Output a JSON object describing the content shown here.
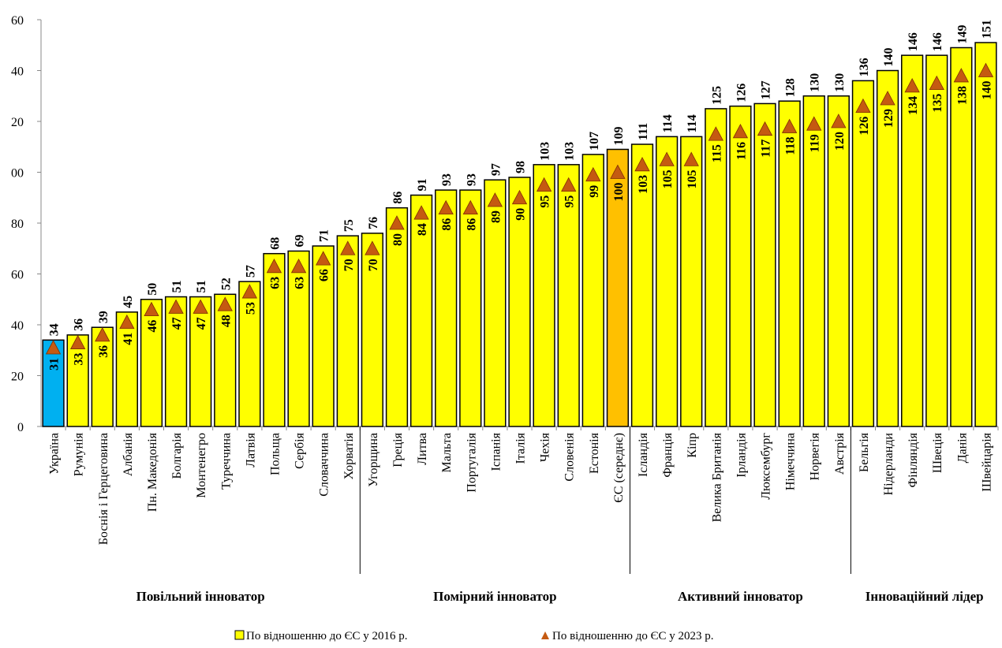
{
  "chart_data": {
    "type": "bar",
    "groups": [
      {
        "name": "Повільний інноватор",
        "categories": [
          "Україна",
          "Румунія",
          "Боснія і Герцеговина",
          "Албанія",
          "Пн. Македонія",
          "Болгарія",
          "Монтенегро",
          "Туреччина",
          "Латвія",
          "Польща",
          "Сербія",
          "Словаччина",
          "Хорватія"
        ]
      },
      {
        "name": "Помірний інноватор",
        "categories": [
          "Угорщина",
          "Греція",
          "Литва",
          "Мальта",
          "Португалія",
          "Іспанія",
          "Італія",
          "Чехія",
          "Словенія",
          "Естонія",
          "ЄС (середнє)"
        ]
      },
      {
        "name": "Активний інноватор",
        "categories": [
          "Ісландія",
          "Франція",
          "Кіпр",
          "Велика Британія",
          "Ірландія",
          "Люксембург",
          "Німеччина",
          "Норвегія",
          "Австрія"
        ]
      },
      {
        "name": "Інноваційний лідер",
        "categories": [
          "Бельгія",
          "Нідерланди",
          "Фінляндія",
          "Швеція",
          "Данія",
          "Швейцарія"
        ]
      }
    ],
    "series": [
      {
        "name": "По відношенню до ЄС у 2016 р.",
        "color": "#ffff00",
        "colors": [
          "#00b0f0",
          "#ffff00",
          "#ffff00",
          "#ffff00",
          "#ffff00",
          "#ffff00",
          "#ffff00",
          "#ffff00",
          "#ffff00",
          "#ffff00",
          "#ffff00",
          "#ffff00",
          "#ffff00",
          "#ffff00",
          "#ffff00",
          "#ffff00",
          "#ffff00",
          "#ffff00",
          "#ffff00",
          "#ffff00",
          "#ffff00",
          "#ffff00",
          "#ffff00",
          "#ffc000",
          "#ffff00",
          "#ffff00",
          "#ffff00",
          "#ffff00",
          "#ffff00",
          "#ffff00",
          "#ffff00",
          "#ffff00",
          "#ffff00",
          "#ffff00",
          "#ffff00",
          "#ffff00",
          "#ffff00",
          "#ffff00",
          "#ffff00"
        ],
        "values": [
          34,
          36,
          39,
          45,
          50,
          51,
          51,
          52,
          57,
          68,
          69,
          71,
          75,
          76,
          86,
          91,
          93,
          93,
          97,
          98,
          103,
          103,
          107,
          109,
          111,
          114,
          114,
          125,
          126,
          127,
          128,
          130,
          130,
          136,
          140,
          146,
          146,
          149,
          151
        ]
      },
      {
        "name": "По відношенню до ЄС у 2023 р.",
        "color": "#c55a11",
        "values": [
          31,
          33,
          36,
          41,
          46,
          47,
          47,
          48,
          53,
          63,
          63,
          66,
          70,
          70,
          80,
          84,
          86,
          86,
          89,
          90,
          95,
          95,
          99,
          100,
          103,
          105,
          105,
          115,
          116,
          117,
          118,
          119,
          120,
          126,
          129,
          134,
          135,
          138,
          140
        ]
      }
    ],
    "ylim": [
      0,
      160
    ],
    "yticks": [
      0,
      20,
      40,
      60,
      80,
      {
        "value": 100,
        "label": "00"
      },
      {
        "value": 120,
        "label": "20"
      },
      {
        "value": 140,
        "label": "40"
      },
      {
        "value": 160,
        "label": "60"
      }
    ]
  }
}
